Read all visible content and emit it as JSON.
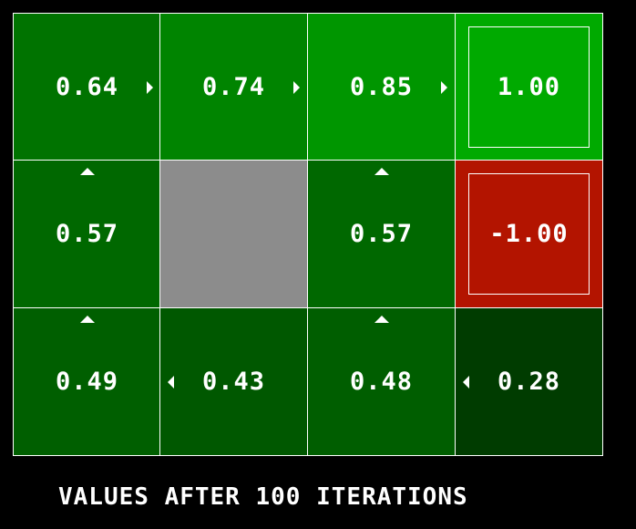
{
  "caption": "VALUES AFTER 100 ITERATIONS",
  "colors": {
    "background": "#000000",
    "grid_line": "#ffffff",
    "wall": "#8c8c8c",
    "terminal_positive": "#00aa00",
    "terminal_negative": "#b31400"
  },
  "grid": {
    "rows": 3,
    "cols": 4,
    "cells": [
      {
        "value": "0.64",
        "color": "#007300",
        "arrow": "right",
        "kind": "state"
      },
      {
        "value": "0.74",
        "color": "#008400",
        "arrow": "right",
        "kind": "state"
      },
      {
        "value": "0.85",
        "color": "#009600",
        "arrow": "right",
        "kind": "state"
      },
      {
        "value": "1.00",
        "color": "#00aa00",
        "arrow": "",
        "kind": "terminal"
      },
      {
        "value": "0.57",
        "color": "#006800",
        "arrow": "up",
        "kind": "state"
      },
      {
        "value": "",
        "color": "#8c8c8c",
        "arrow": "",
        "kind": "wall"
      },
      {
        "value": "0.57",
        "color": "#006800",
        "arrow": "up",
        "kind": "state"
      },
      {
        "value": "-1.00",
        "color": "#b31400",
        "arrow": "",
        "kind": "terminal"
      },
      {
        "value": "0.49",
        "color": "#005f00",
        "arrow": "up",
        "kind": "state"
      },
      {
        "value": "0.43",
        "color": "#005800",
        "arrow": "left",
        "kind": "state"
      },
      {
        "value": "0.48",
        "color": "#005e00",
        "arrow": "up",
        "kind": "state"
      },
      {
        "value": "0.28",
        "color": "#003c00",
        "arrow": "left",
        "kind": "state"
      }
    ]
  }
}
